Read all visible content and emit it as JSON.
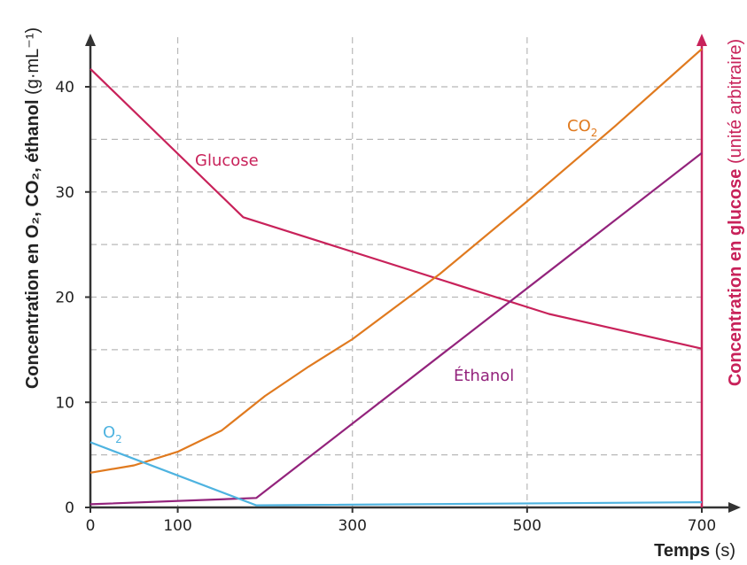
{
  "chart_data": {
    "type": "line",
    "xlabel": "Temps",
    "xlabel_unit": "(s)",
    "ylabel_left": "Concentration en O₂, CO₂, éthanol",
    "ylabel_left_unit": "(g·mL⁻¹)",
    "ylabel_right": "Concentration en glucose",
    "ylabel_right_unit": "(unité arbitraire)",
    "xlim": [
      0,
      700
    ],
    "ylim": [
      0,
      45
    ],
    "x_ticks": [
      {
        "value": 0,
        "label": "0"
      },
      {
        "value": 100,
        "label": "100"
      },
      {
        "value": 300,
        "label": "300"
      },
      {
        "value": 500,
        "label": "500"
      },
      {
        "value": 700,
        "label": "700"
      }
    ],
    "y_ticks": [
      {
        "value": 0,
        "label": "0"
      },
      {
        "value": 10,
        "label": "10"
      },
      {
        "value": 20,
        "label": "20"
      },
      {
        "value": 30,
        "label": "30"
      },
      {
        "value": 40,
        "label": "40"
      }
    ],
    "x_grid": [
      100,
      300,
      500
    ],
    "y_grid": [
      5,
      10,
      15,
      20,
      25,
      30,
      35,
      40
    ],
    "grid": true,
    "colors": {
      "glucose": "#c8225a",
      "co2": "#e07a1f",
      "ethanol": "#93237c",
      "o2": "#4eb3e0",
      "right_axis": "#c8225a",
      "left_axis": "#333333"
    },
    "series": [
      {
        "id": "glucose",
        "name": "Glucose",
        "x": [
          0,
          175,
          525,
          700
        ],
        "y": [
          41.7,
          27.6,
          18.4,
          15.1
        ]
      },
      {
        "id": "co2",
        "name": "CO₂",
        "x": [
          0,
          50,
          100,
          150,
          200,
          250,
          300,
          400,
          500,
          600,
          700
        ],
        "y": [
          3.3,
          4,
          5.3,
          7.3,
          10.6,
          13.4,
          16,
          22.2,
          29.1,
          36.2,
          43.6
        ]
      },
      {
        "id": "ethanol",
        "name": "Éthanol",
        "x": [
          0,
          190,
          700
        ],
        "y": [
          0.3,
          0.9,
          33.7
        ]
      },
      {
        "id": "o2",
        "name": "O₂",
        "x": [
          0,
          190,
          700
        ],
        "y": [
          6.2,
          0.2,
          0.5
        ]
      }
    ],
    "labels": {
      "glucose": "Glucose",
      "co2_main": "CO",
      "co2_sub": "2",
      "ethanol": "Éthanol",
      "o2_main": "O",
      "o2_sub": "2"
    }
  }
}
